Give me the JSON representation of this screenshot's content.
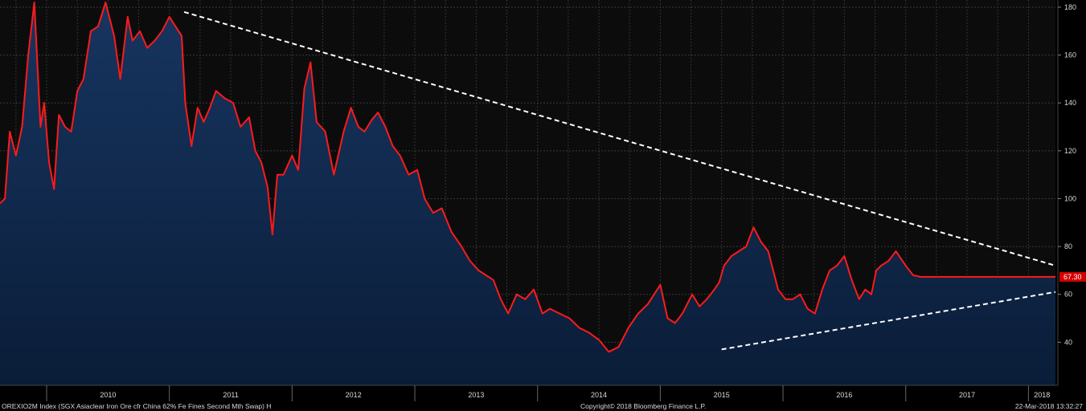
{
  "footer": {
    "ticker": "OREXIO2M Index (SGX Asiaclear Iron Ore cfr China 62% Fe Fines Second Mth Swap) H",
    "copyright": "Copyright© 2018 Bloomberg Finance L.P.",
    "timestamp": "22-Mar-2018 13:32:27"
  },
  "chart_data": {
    "type": "area",
    "title": "",
    "xlabel": "",
    "ylabel": "",
    "ylim": [
      22,
      183
    ],
    "xlim": [
      2009.62,
      2018.22
    ],
    "x_tick_labels": [
      "2010",
      "2011",
      "2012",
      "2013",
      "2014",
      "2015",
      "2016",
      "2017",
      "2018"
    ],
    "y_tick_labels": [
      "40",
      "60",
      "80",
      "100",
      "120",
      "140",
      "160",
      "180"
    ],
    "y_axis_position": "right",
    "grid": true,
    "last_value_label": "67.30",
    "colors": {
      "line": "#ff1a1a",
      "area": "#0f2a4f",
      "background": "#0c0c0c",
      "trendline": "#ffffff",
      "last_value_tag": "#d00000"
    },
    "series": [
      {
        "x": [
          2009.62,
          2009.66,
          2009.7,
          2009.75,
          2009.8,
          2009.85,
          2009.9,
          2009.95,
          2009.98,
          2010.02,
          2010.06,
          2010.1,
          2010.15,
          2010.2,
          2010.25,
          2010.3,
          2010.36,
          2010.42,
          2010.48,
          2010.55,
          2010.6,
          2010.66,
          2010.7,
          2010.76,
          2010.82,
          2010.88,
          2010.94,
          2011.0,
          2011.05,
          2011.1,
          2011.13,
          2011.18,
          2011.23,
          2011.28,
          2011.33,
          2011.38,
          2011.45,
          2011.52,
          2011.58,
          2011.65,
          2011.7,
          2011.75,
          2011.8,
          2011.84,
          2011.88,
          2011.93,
          2012.0,
          2012.05,
          2012.1,
          2012.15,
          2012.2,
          2012.27,
          2012.34,
          2012.42,
          2012.48,
          2012.54,
          2012.59,
          2012.65,
          2012.7,
          2012.76,
          2012.82,
          2012.88,
          2012.95,
          2013.02,
          2013.08,
          2013.15,
          2013.22,
          2013.3,
          2013.38,
          2013.45,
          2013.52,
          2013.58,
          2013.64,
          2013.7,
          2013.76,
          2013.83,
          2013.9,
          2013.97,
          2014.04,
          2014.1,
          2014.18,
          2014.26,
          2014.34,
          2014.42,
          2014.5,
          2014.58,
          2014.66,
          2014.74,
          2014.82,
          2014.9,
          2015.0,
          2015.06,
          2015.12,
          2015.18,
          2015.26,
          2015.32,
          2015.38,
          2015.44,
          2015.48,
          2015.52,
          2015.58,
          2015.64,
          2015.7,
          2015.76,
          2015.82,
          2015.88,
          2015.96,
          2016.02,
          2016.08,
          2016.14,
          2016.2,
          2016.26,
          2016.32,
          2016.38,
          2016.44,
          2016.5,
          2016.56,
          2016.62,
          2016.67,
          2016.72,
          2016.76,
          2016.8,
          2016.86,
          2016.92,
          2017.0,
          2017.06,
          2017.12,
          2017.18,
          2017.24,
          2017.3,
          2017.36,
          2017.42,
          2017.48,
          2017.54,
          2017.6,
          2017.66,
          2017.72,
          2017.76,
          2017.82,
          2017.88,
          2017.93,
          2017.97,
          2018.0,
          2018.04,
          2018.08,
          2018.12,
          2018.16,
          2018.2,
          2018.22
        ],
        "y": [
          98,
          100,
          128,
          118,
          130,
          160,
          182,
          130,
          140,
          115,
          104,
          135,
          130,
          128,
          145,
          150,
          170,
          172,
          182,
          168,
          150,
          176,
          166,
          170,
          163,
          166,
          170,
          176,
          172,
          168,
          140,
          122,
          138,
          132,
          138,
          145,
          142,
          140,
          130,
          134,
          120,
          115,
          105,
          85,
          110,
          110,
          118,
          112,
          146,
          157,
          132,
          128,
          110,
          128,
          138,
          130,
          128,
          133,
          136,
          130,
          122,
          118,
          110,
          112,
          100,
          94,
          96,
          86,
          80,
          74,
          70,
          68,
          66,
          58,
          52,
          60,
          58,
          62,
          52,
          54,
          52,
          50,
          46,
          44,
          41,
          36,
          38,
          46,
          52,
          56,
          64,
          50,
          48,
          52,
          60,
          55,
          58,
          62,
          65,
          72,
          76,
          78,
          80,
          88,
          82,
          78,
          62,
          58,
          58,
          60,
          54,
          52,
          62,
          70,
          72,
          76,
          66,
          58,
          62,
          60,
          70,
          72,
          74,
          78,
          72,
          68,
          67.3,
          67.3,
          67.3,
          67.3,
          67.3,
          67.3,
          67.3,
          67.3,
          67.3,
          67.3,
          67.3,
          67.3,
          67.3,
          67.3,
          67.3,
          67.3,
          67.3,
          67.3,
          67.3,
          67.3,
          67.3,
          67.3,
          67.3
        ]
      }
    ],
    "trendlines": [
      {
        "x": [
          2011.12,
          2018.22
        ],
        "y": [
          178,
          72
        ]
      },
      {
        "x": [
          2015.5,
          2018.22
        ],
        "y": [
          37,
          61
        ]
      }
    ]
  }
}
